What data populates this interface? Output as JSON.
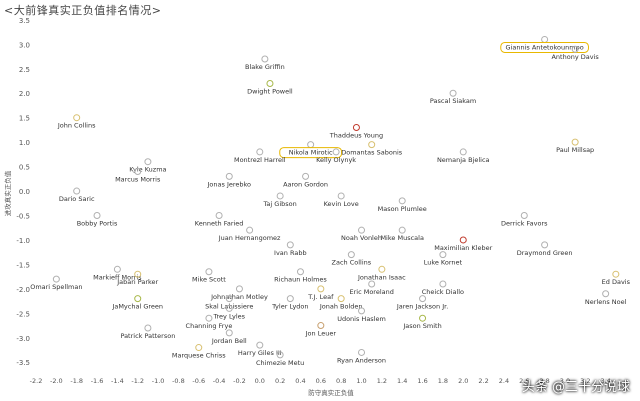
{
  "chart_data": {
    "type": "scatter",
    "title": "<大前锋真实正负值排名情况>",
    "xlabel": "防守真实正负值",
    "ylabel": "进攻真实正负值",
    "xlim": [
      -2.2,
      3.6
    ],
    "ylim": [
      -3.7,
      3.6
    ],
    "x_ticks": [
      -2.2,
      -2.0,
      -1.8,
      -1.6,
      -1.4,
      -1.2,
      -1.0,
      -0.8,
      -0.6,
      -0.4,
      -0.2,
      0.0,
      0.2,
      0.4,
      0.6,
      0.8,
      1.0,
      1.2,
      1.4,
      1.6,
      1.8,
      2.0,
      2.2,
      2.4,
      2.6,
      2.8,
      3.0,
      3.2,
      3.4
    ],
    "x_tick_labels": [
      "-2.2",
      "-2.0",
      "-1.8",
      "-1.6",
      "-1.4",
      "-1.2",
      "-1.0",
      "-0.8",
      "-0.6",
      "-0.4",
      "-0.2",
      "0.0",
      "0.2",
      "0.4",
      "0.6",
      "0.8",
      "1.0",
      "1.2",
      "1.4",
      "1.6",
      "1.8",
      "2.0",
      "2.2",
      "2.4",
      "2.6",
      "2.8",
      "3.0",
      "3.2",
      "3.4"
    ],
    "y_ticks": [
      3.5,
      3.0,
      2.5,
      2.0,
      1.5,
      1.0,
      0.5,
      0.0,
      -0.5,
      -1.0,
      -1.5,
      -2.0,
      -2.5,
      -3.0,
      -3.5
    ],
    "y_tick_labels": [
      "3.5",
      "3.0",
      "2.5",
      "2.0",
      "1.5",
      "1.0",
      "0.5",
      "0.0",
      "-0.5",
      "-1.0",
      "-1.5",
      "-2.0",
      "-2.5",
      "-3.0",
      "-3.5"
    ],
    "grid": false,
    "points": [
      {
        "label": "Giannis Antetokounmpo",
        "x": 2.8,
        "y": 3.1,
        "color": "#b0b0b0",
        "highlight": true
      },
      {
        "label": "Anthony Davis",
        "x": 3.1,
        "y": 2.9,
        "color": "#b0b0b0"
      },
      {
        "label": "Blake Griffin",
        "x": 0.05,
        "y": 2.7,
        "color": "#b0b0b0"
      },
      {
        "label": "Dwight Powell",
        "x": 0.1,
        "y": 2.2,
        "color": "#a8b84a"
      },
      {
        "label": "Pascal Siakam",
        "x": 1.9,
        "y": 2.0,
        "color": "#b0b0b0"
      },
      {
        "label": "John Collins",
        "x": -1.8,
        "y": 1.5,
        "color": "#d8c070"
      },
      {
        "label": "Thaddeus Young",
        "x": 0.95,
        "y": 1.3,
        "color": "#c0392b"
      },
      {
        "label": "Nikola Mirotic",
        "x": 0.5,
        "y": 0.95,
        "color": "#b0b0b0",
        "highlight": true
      },
      {
        "label": "Domantas Sabonis",
        "x": 1.1,
        "y": 0.95,
        "color": "#d8c070"
      },
      {
        "label": "Paul Millsap",
        "x": 3.1,
        "y": 1.0,
        "color": "#d8c070"
      },
      {
        "label": "Kyle Kuzma",
        "x": -1.1,
        "y": 0.6,
        "color": "#b0b0b0"
      },
      {
        "label": "Montrezl Harrell",
        "x": 0.0,
        "y": 0.8,
        "color": "#b0b0b0"
      },
      {
        "label": "Kelly Olynyk",
        "x": 0.75,
        "y": 0.8,
        "color": "#b0b0b0"
      },
      {
        "label": "Nemanja Bjelica",
        "x": 2.0,
        "y": 0.8,
        "color": "#b0b0b0"
      },
      {
        "label": "Marcus Morris",
        "x": -1.2,
        "y": 0.4,
        "color": "#b0b0b0"
      },
      {
        "label": "Jonas Jerebko",
        "x": -0.3,
        "y": 0.3,
        "color": "#b0b0b0"
      },
      {
        "label": "Aaron Gordon",
        "x": 0.45,
        "y": 0.3,
        "color": "#b0b0b0"
      },
      {
        "label": "Dario Saric",
        "x": -1.8,
        "y": 0.0,
        "color": "#b0b0b0"
      },
      {
        "label": "Taj Gibson",
        "x": 0.2,
        "y": -0.1,
        "color": "#b0b0b0"
      },
      {
        "label": "Kevin Love",
        "x": 0.8,
        "y": -0.1,
        "color": "#b0b0b0"
      },
      {
        "label": "Mason Plumlee",
        "x": 1.4,
        "y": -0.2,
        "color": "#b0b0b0"
      },
      {
        "label": "Bobby Portis",
        "x": -1.6,
        "y": -0.5,
        "color": "#b0b0b0"
      },
      {
        "label": "Kenneth Faried",
        "x": -0.4,
        "y": -0.5,
        "color": "#b0b0b0"
      },
      {
        "label": "Derrick Favors",
        "x": 2.6,
        "y": -0.5,
        "color": "#b0b0b0"
      },
      {
        "label": "Juan Hernangomez",
        "x": -0.1,
        "y": -0.8,
        "color": "#b0b0b0"
      },
      {
        "label": "Noah Vonleh",
        "x": 1.0,
        "y": -0.8,
        "color": "#b0b0b0"
      },
      {
        "label": "Mike Muscala",
        "x": 1.4,
        "y": -0.8,
        "color": "#b0b0b0"
      },
      {
        "label": "Ivan Rabb",
        "x": 0.3,
        "y": -1.1,
        "color": "#b0b0b0"
      },
      {
        "label": "Maximilian Kleber",
        "x": 2.0,
        "y": -1.0,
        "color": "#c0392b"
      },
      {
        "label": "Draymond Green",
        "x": 2.8,
        "y": -1.1,
        "color": "#b0b0b0"
      },
      {
        "label": "Zach Collins",
        "x": 0.9,
        "y": -1.3,
        "color": "#b0b0b0"
      },
      {
        "label": "Luke Kornet",
        "x": 1.8,
        "y": -1.3,
        "color": "#b0b0b0"
      },
      {
        "label": "Markieff Morris",
        "x": -1.4,
        "y": -1.6,
        "color": "#b0b0b0"
      },
      {
        "label": "Jabari Parker",
        "x": -1.2,
        "y": -1.7,
        "color": "#d8c070"
      },
      {
        "label": "Mike Scott",
        "x": -0.5,
        "y": -1.65,
        "color": "#b0b0b0"
      },
      {
        "label": "Richaun Holmes",
        "x": 0.4,
        "y": -1.65,
        "color": "#b0b0b0"
      },
      {
        "label": "Jonathan Isaac",
        "x": 1.2,
        "y": -1.6,
        "color": "#d8c070"
      },
      {
        "label": "Omari Spellman",
        "x": -2.0,
        "y": -1.8,
        "color": "#b0b0b0"
      },
      {
        "label": "Eric Moreland",
        "x": 1.1,
        "y": -1.9,
        "color": "#b0b0b0"
      },
      {
        "label": "Cheick Diallo",
        "x": 1.8,
        "y": -1.9,
        "color": "#b0b0b0"
      },
      {
        "label": "Ed Davis",
        "x": 3.5,
        "y": -1.7,
        "color": "#d8c070"
      },
      {
        "label": "Johnathan Motley",
        "x": -0.2,
        "y": -2.0,
        "color": "#b0b0b0"
      },
      {
        "label": "T.J. Leaf",
        "x": 0.6,
        "y": -2.0,
        "color": "#d8c070"
      },
      {
        "label": "JaMychal Green",
        "x": -1.2,
        "y": -2.2,
        "color": "#a8b84a"
      },
      {
        "label": "Skal Labissiere",
        "x": -0.3,
        "y": -2.2,
        "color": "#b0b0b0"
      },
      {
        "label": "Tyler Lydon",
        "x": 0.3,
        "y": -2.2,
        "color": "#b0b0b0"
      },
      {
        "label": "Jonah Bolden",
        "x": 0.8,
        "y": -2.2,
        "color": "#d8c070"
      },
      {
        "label": "Jaren Jackson Jr.",
        "x": 1.6,
        "y": -2.2,
        "color": "#b0b0b0"
      },
      {
        "label": "Nerlens Noel",
        "x": 3.4,
        "y": -2.1,
        "color": "#b0b0b0"
      },
      {
        "label": "Trey Lyles",
        "x": -0.3,
        "y": -2.4,
        "color": "#b0b0b0"
      },
      {
        "label": "Udonis Haslem",
        "x": 1.0,
        "y": -2.45,
        "color": "#b0b0b0"
      },
      {
        "label": "Channing Frye",
        "x": -0.5,
        "y": -2.6,
        "color": "#b0b0b0"
      },
      {
        "label": "Jason Smith",
        "x": 1.6,
        "y": -2.6,
        "color": "#a8b84a"
      },
      {
        "label": "Patrick Patterson",
        "x": -1.1,
        "y": -2.8,
        "color": "#b0b0b0"
      },
      {
        "label": "Jon Leuer",
        "x": 0.6,
        "y": -2.75,
        "color": "#c8a070"
      },
      {
        "label": "Jordan Bell",
        "x": -0.3,
        "y": -2.9,
        "color": "#b0b0b0"
      },
      {
        "label": "Harry Giles III",
        "x": 0.0,
        "y": -3.15,
        "color": "#b0b0b0"
      },
      {
        "label": "Marquese Chriss",
        "x": -0.6,
        "y": -3.2,
        "color": "#d8c070"
      },
      {
        "label": "Chimezie Metu",
        "x": 0.2,
        "y": -3.35,
        "color": "#b0b0b0"
      },
      {
        "label": "Ryan Anderson",
        "x": 1.0,
        "y": -3.3,
        "color": "#b0b0b0"
      }
    ]
  },
  "watermark": "头条 @三十分说球"
}
